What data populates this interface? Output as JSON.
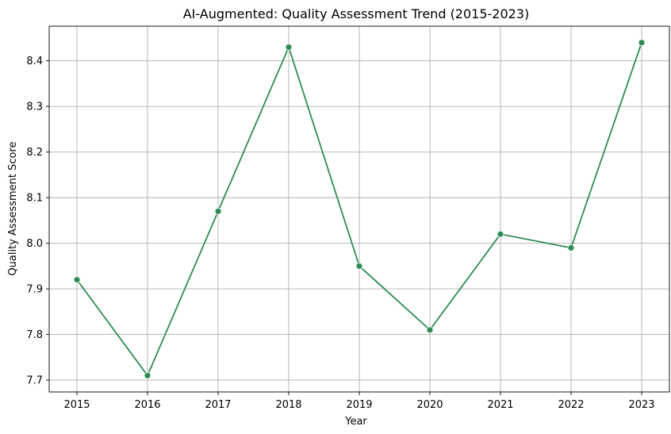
{
  "chart_data": {
    "type": "line",
    "title": "AI-Augmented: Quality Assessment Trend (2015-2023)",
    "xlabel": "Year",
    "ylabel": "Quality Assessment Score",
    "x": [
      "2015",
      "2016",
      "2017",
      "2018",
      "2019",
      "2020",
      "2021",
      "2022",
      "2023"
    ],
    "series": [
      {
        "values": [
          7.92,
          7.71,
          8.07,
          8.43,
          7.95,
          7.81,
          8.02,
          7.99,
          8.44
        ],
        "color": "#2e8b57",
        "marker": "circle"
      }
    ],
    "yticks": [
      "7.7",
      "7.8",
      "7.9",
      "8.0",
      "8.1",
      "8.2",
      "8.3",
      "8.4"
    ],
    "ylim": [
      7.674,
      8.476
    ],
    "grid": true,
    "legend": "none"
  }
}
